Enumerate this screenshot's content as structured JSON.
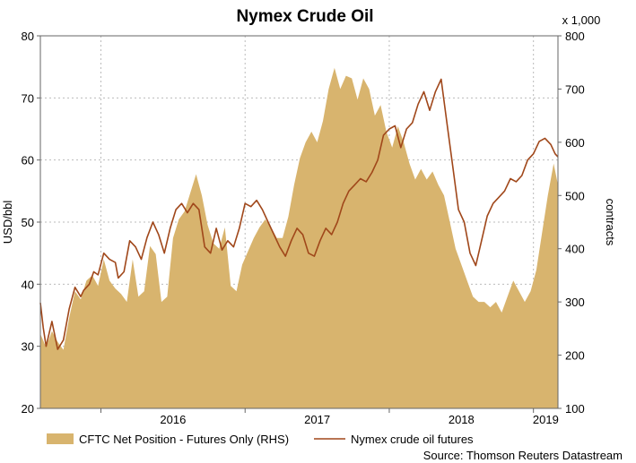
{
  "chart_data": {
    "type": "line",
    "title": "Nymex Crude Oil",
    "left_axis": {
      "label": "USD/bbl",
      "ylim": [
        20,
        80
      ],
      "ticks": [
        "20",
        "30",
        "40",
        "50",
        "60",
        "70",
        "80"
      ]
    },
    "right_axis": {
      "label": "contracts",
      "unit_note": "x 1,000",
      "ylim": [
        100,
        800
      ],
      "ticks": [
        "100",
        "200",
        "300",
        "400",
        "500",
        "600",
        "700",
        "800"
      ]
    },
    "x_axis": {
      "range": [
        2015.58,
        2019.17
      ],
      "ticks": [
        {
          "label": "2016",
          "value": 2016.0
        },
        {
          "label": "2017",
          "value": 2017.0
        },
        {
          "label": "2018",
          "value": 2018.0
        },
        {
          "label": "2019",
          "value": 2019.0
        }
      ],
      "boundaries": [
        2016.0,
        2017.0,
        2018.0,
        2019.0
      ]
    },
    "grid": true,
    "legend_placement": "bottom",
    "source": "Source: Thomson Reuters Datastream",
    "series": [
      {
        "name": "CFTC Net Position - Futures Only (RHS)",
        "kind": "area",
        "axis": "right",
        "color": "#D8B46E",
        "points": [
          [
            2015.58,
            240
          ],
          [
            2015.62,
            215
          ],
          [
            2015.66,
            245
          ],
          [
            2015.7,
            225
          ],
          [
            2015.74,
            210
          ],
          [
            2015.78,
            270
          ],
          [
            2015.82,
            320
          ],
          [
            2015.86,
            305
          ],
          [
            2015.9,
            340
          ],
          [
            2015.94,
            350
          ],
          [
            2015.98,
            330
          ],
          [
            2016.02,
            380
          ],
          [
            2016.06,
            340
          ],
          [
            2016.1,
            325
          ],
          [
            2016.14,
            315
          ],
          [
            2016.18,
            300
          ],
          [
            2016.22,
            380
          ],
          [
            2016.26,
            310
          ],
          [
            2016.3,
            320
          ],
          [
            2016.34,
            405
          ],
          [
            2016.38,
            390
          ],
          [
            2016.42,
            300
          ],
          [
            2016.46,
            310
          ],
          [
            2016.5,
            420
          ],
          [
            2016.54,
            455
          ],
          [
            2016.58,
            470
          ],
          [
            2016.62,
            505
          ],
          [
            2016.66,
            540
          ],
          [
            2016.7,
            500
          ],
          [
            2016.74,
            445
          ],
          [
            2016.78,
            410
          ],
          [
            2016.82,
            400
          ],
          [
            2016.86,
            440
          ],
          [
            2016.9,
            330
          ],
          [
            2016.94,
            320
          ],
          [
            2016.98,
            370
          ],
          [
            2017.02,
            395
          ],
          [
            2017.06,
            420
          ],
          [
            2017.1,
            440
          ],
          [
            2017.14,
            455
          ],
          [
            2017.18,
            440
          ],
          [
            2017.22,
            420
          ],
          [
            2017.26,
            420
          ],
          [
            2017.3,
            460
          ],
          [
            2017.34,
            520
          ],
          [
            2017.38,
            570
          ],
          [
            2017.42,
            600
          ],
          [
            2017.46,
            620
          ],
          [
            2017.5,
            600
          ],
          [
            2017.54,
            640
          ],
          [
            2017.58,
            700
          ],
          [
            2017.62,
            740
          ],
          [
            2017.66,
            700
          ],
          [
            2017.7,
            725
          ],
          [
            2017.74,
            720
          ],
          [
            2017.78,
            680
          ],
          [
            2017.82,
            720
          ],
          [
            2017.86,
            700
          ],
          [
            2017.9,
            650
          ],
          [
            2017.94,
            670
          ],
          [
            2017.98,
            620
          ],
          [
            2018.02,
            590
          ],
          [
            2018.06,
            630
          ],
          [
            2018.1,
            600
          ],
          [
            2018.14,
            560
          ],
          [
            2018.18,
            530
          ],
          [
            2018.22,
            550
          ],
          [
            2018.26,
            530
          ],
          [
            2018.3,
            545
          ],
          [
            2018.34,
            520
          ],
          [
            2018.38,
            500
          ],
          [
            2018.42,
            450
          ],
          [
            2018.46,
            400
          ],
          [
            2018.5,
            370
          ],
          [
            2018.54,
            340
          ],
          [
            2018.58,
            310
          ],
          [
            2018.62,
            300
          ],
          [
            2018.66,
            300
          ],
          [
            2018.7,
            290
          ],
          [
            2018.74,
            300
          ],
          [
            2018.78,
            280
          ],
          [
            2018.82,
            310
          ],
          [
            2018.86,
            340
          ],
          [
            2018.9,
            320
          ],
          [
            2018.94,
            300
          ],
          [
            2018.98,
            320
          ],
          [
            2019.02,
            360
          ],
          [
            2019.06,
            430
          ],
          [
            2019.1,
            500
          ],
          [
            2019.14,
            560
          ],
          [
            2019.17,
            520
          ]
        ]
      },
      {
        "name": "Nymex crude oil futures",
        "kind": "line",
        "axis": "left",
        "color": "#A0471A",
        "points": [
          [
            2015.58,
            37
          ],
          [
            2015.6,
            33
          ],
          [
            2015.62,
            30
          ],
          [
            2015.66,
            34
          ],
          [
            2015.7,
            29.5
          ],
          [
            2015.74,
            31
          ],
          [
            2015.78,
            36
          ],
          [
            2015.82,
            39.5
          ],
          [
            2015.86,
            38
          ],
          [
            2015.88,
            39
          ],
          [
            2015.92,
            40
          ],
          [
            2015.95,
            42
          ],
          [
            2015.98,
            41.5
          ],
          [
            2016.02,
            45
          ],
          [
            2016.06,
            44
          ],
          [
            2016.1,
            43.5
          ],
          [
            2016.12,
            41
          ],
          [
            2016.16,
            42
          ],
          [
            2016.2,
            47
          ],
          [
            2016.24,
            46
          ],
          [
            2016.28,
            44
          ],
          [
            2016.32,
            47.5
          ],
          [
            2016.36,
            50
          ],
          [
            2016.4,
            48
          ],
          [
            2016.44,
            45
          ],
          [
            2016.48,
            49
          ],
          [
            2016.52,
            52
          ],
          [
            2016.56,
            53
          ],
          [
            2016.6,
            51.5
          ],
          [
            2016.64,
            53
          ],
          [
            2016.68,
            52
          ],
          [
            2016.72,
            46
          ],
          [
            2016.76,
            45
          ],
          [
            2016.8,
            49
          ],
          [
            2016.84,
            45.5
          ],
          [
            2016.88,
            47
          ],
          [
            2016.92,
            46
          ],
          [
            2016.96,
            49
          ],
          [
            2017.0,
            53
          ],
          [
            2017.04,
            52.5
          ],
          [
            2017.08,
            53.5
          ],
          [
            2017.12,
            52
          ],
          [
            2017.16,
            50
          ],
          [
            2017.2,
            48
          ],
          [
            2017.24,
            46
          ],
          [
            2017.28,
            44.5
          ],
          [
            2017.32,
            47
          ],
          [
            2017.36,
            49
          ],
          [
            2017.4,
            48
          ],
          [
            2017.44,
            45
          ],
          [
            2017.48,
            44.5
          ],
          [
            2017.52,
            47
          ],
          [
            2017.56,
            49
          ],
          [
            2017.6,
            48
          ],
          [
            2017.64,
            50
          ],
          [
            2017.68,
            53
          ],
          [
            2017.72,
            55
          ],
          [
            2017.76,
            56
          ],
          [
            2017.8,
            57
          ],
          [
            2017.84,
            56.5
          ],
          [
            2017.88,
            58
          ],
          [
            2017.92,
            60
          ],
          [
            2017.96,
            64
          ],
          [
            2018.0,
            65
          ],
          [
            2018.04,
            65.5
          ],
          [
            2018.08,
            62
          ],
          [
            2018.12,
            65
          ],
          [
            2018.16,
            66
          ],
          [
            2018.2,
            69
          ],
          [
            2018.24,
            71
          ],
          [
            2018.28,
            68
          ],
          [
            2018.32,
            71
          ],
          [
            2018.36,
            73
          ],
          [
            2018.4,
            66
          ],
          [
            2018.44,
            59
          ],
          [
            2018.48,
            52
          ],
          [
            2018.52,
            50
          ],
          [
            2018.56,
            45
          ],
          [
            2018.6,
            43
          ],
          [
            2018.64,
            47
          ],
          [
            2018.68,
            51
          ],
          [
            2018.72,
            53
          ],
          [
            2018.76,
            54
          ],
          [
            2018.8,
            55
          ],
          [
            2018.84,
            57
          ],
          [
            2018.88,
            56.5
          ],
          [
            2018.92,
            57.5
          ],
          [
            2018.96,
            60
          ],
          [
            2019.0,
            61
          ],
          [
            2019.04,
            63
          ],
          [
            2019.08,
            63.5
          ],
          [
            2019.12,
            62.5
          ],
          [
            2019.15,
            61
          ],
          [
            2019.17,
            60.5
          ]
        ]
      }
    ]
  }
}
